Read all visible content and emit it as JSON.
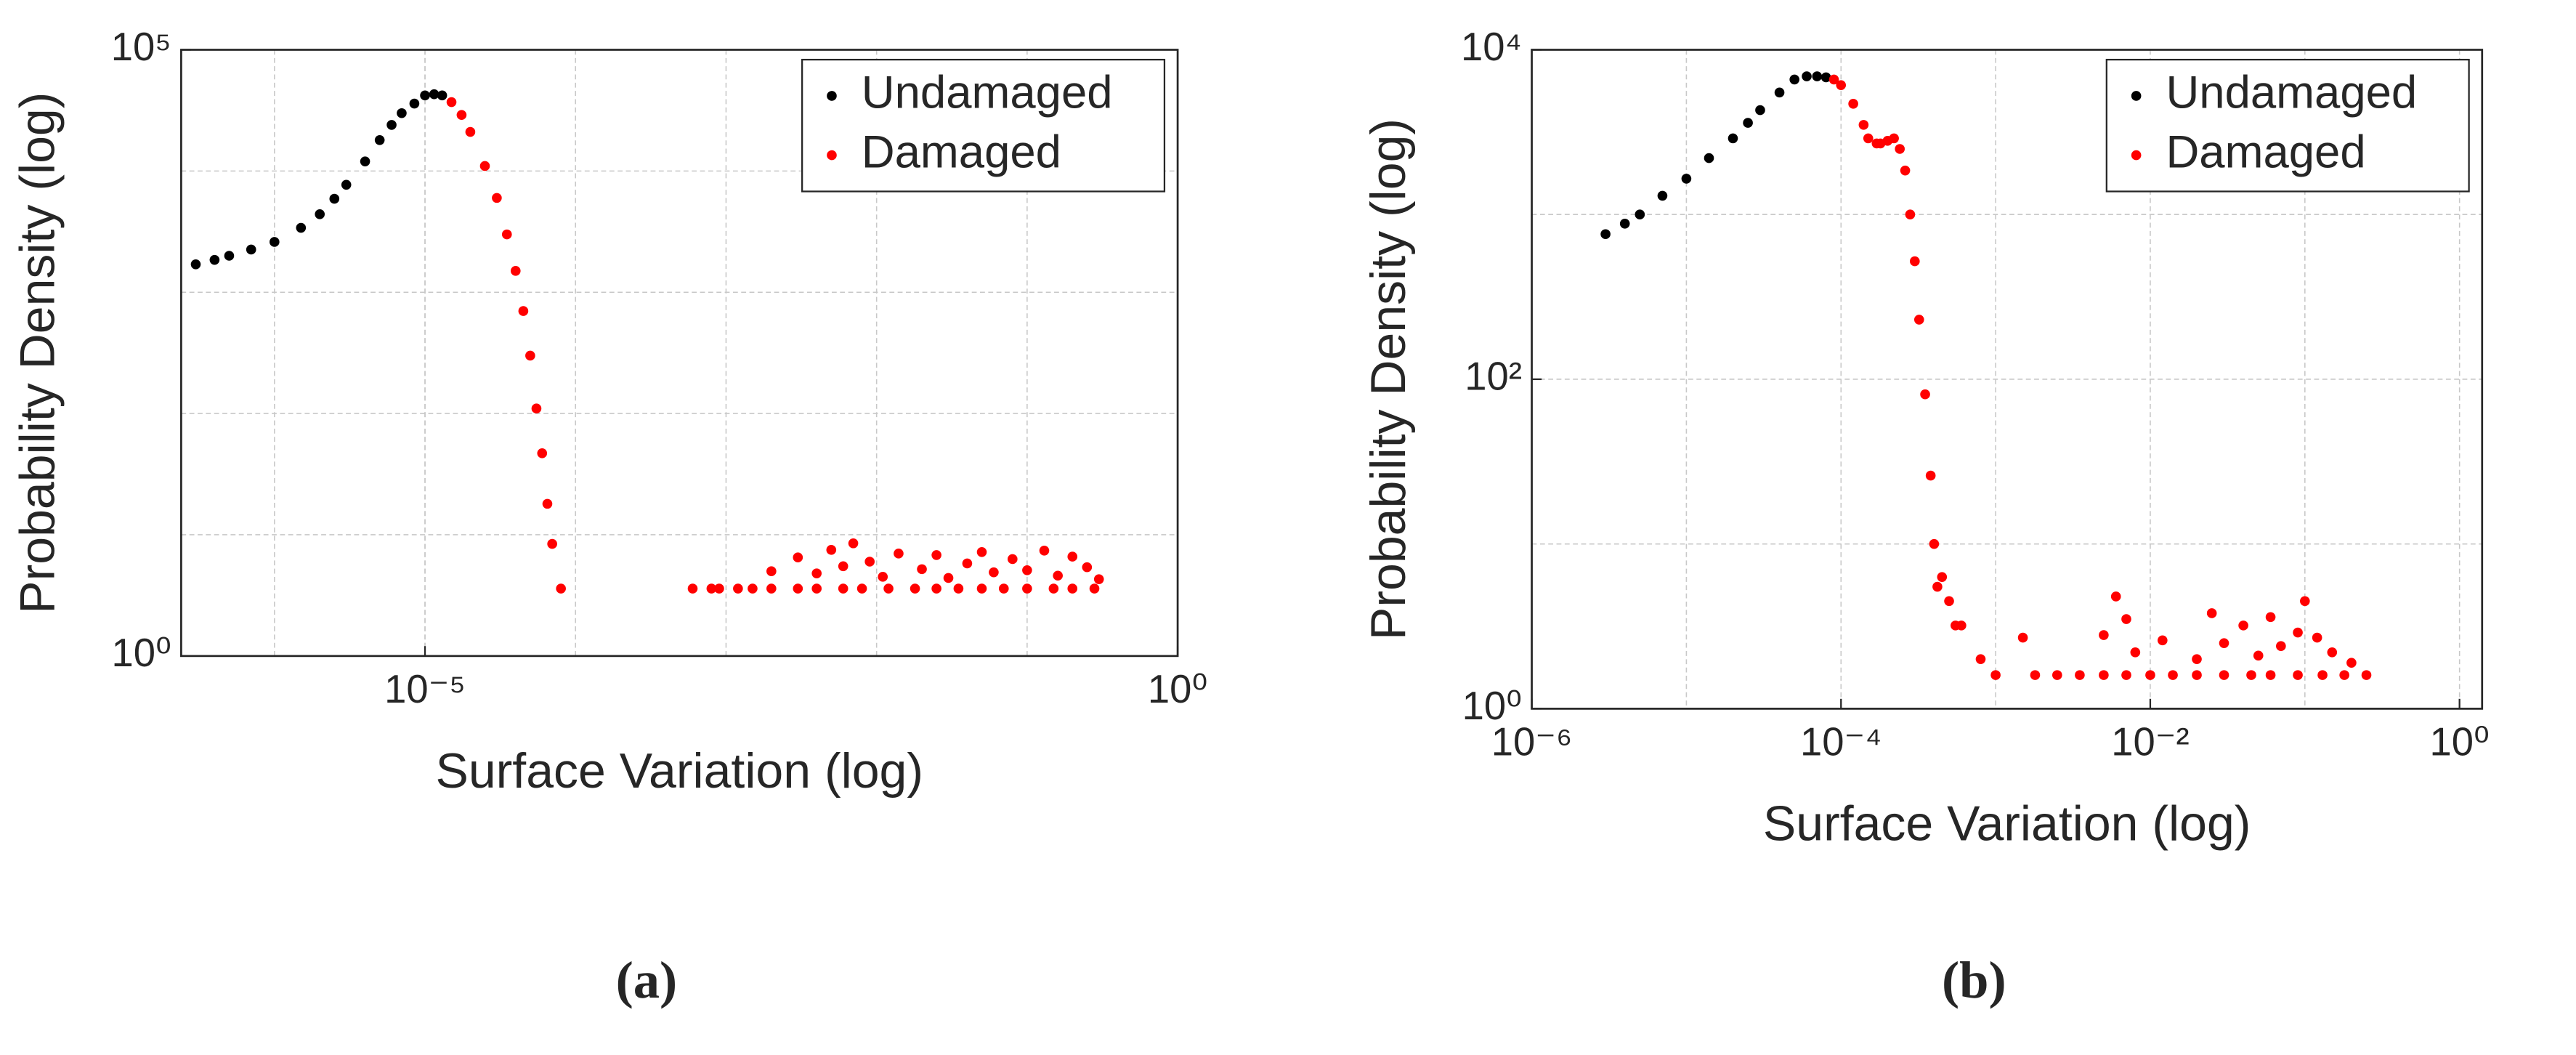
{
  "chart_data": [
    {
      "type": "scatter",
      "caption": "(a)",
      "xlabel": "Surface Variation (log)",
      "ylabel": "Probability Density (log)",
      "xscale": "log",
      "yscale": "log",
      "grid": true,
      "legend": "upper right",
      "xlim": [
        2.4e-07,
        1
      ],
      "ylim": [
        1,
        100000
      ],
      "xticks": [
        {
          "value": 1e-05,
          "label": "10⁻⁵"
        },
        {
          "value": 1,
          "label": "10⁰"
        }
      ],
      "yticks": [
        {
          "value": 1,
          "label": "10⁰"
        },
        {
          "value": 100000,
          "label": "10⁵"
        }
      ],
      "xgrid": [
        1e-06,
        1e-05,
        0.0001,
        0.001,
        0.01,
        0.1
      ],
      "ygrid": [
        10,
        100,
        1000,
        10000
      ],
      "series": [
        {
          "name": "Undamaged",
          "color": "#000000",
          "x": [
            3e-07,
            4e-07,
            5e-07,
            7e-07,
            1e-06,
            1.5e-06,
            2e-06,
            2.5e-06,
            3e-06,
            4e-06,
            5e-06,
            6e-06,
            7e-06,
            8.5e-06,
            1e-05,
            1.15e-05,
            1.3e-05
          ],
          "values": [
            1700,
            1850,
            2000,
            2250,
            2600,
            3400,
            4400,
            5900,
            7700,
            12000,
            18000,
            24000,
            30000,
            36000,
            42000,
            43000,
            42000
          ]
        },
        {
          "name": "Damaged",
          "color": "#ff0000",
          "x": [
            1.5e-05,
            1.75e-05,
            2e-05,
            2.5e-05,
            3e-05,
            3.5e-05,
            4e-05,
            4.5e-05,
            5e-05,
            5.5e-05,
            6e-05,
            6.5e-05,
            7e-05,
            8e-05,
            0.0006,
            0.0008,
            0.0009,
            0.0012,
            0.0015,
            0.002,
            0.003,
            0.004,
            0.006,
            0.008,
            0.012,
            0.018,
            0.025,
            0.035,
            0.05,
            0.07,
            0.1,
            0.15,
            0.2,
            0.28,
            0.002,
            0.003,
            0.004,
            0.005,
            0.006,
            0.007,
            0.009,
            0.011,
            0.014,
            0.02,
            0.025,
            0.03,
            0.04,
            0.05,
            0.06,
            0.08,
            0.1,
            0.13,
            0.16,
            0.2,
            0.25,
            0.3
          ],
          "values": [
            37000,
            29000,
            21000,
            11000,
            6000,
            3000,
            1500,
            700,
            300,
            110,
            47,
            18,
            8.4,
            3.6,
            3.6,
            3.6,
            3.6,
            3.6,
            3.6,
            3.6,
            3.6,
            3.6,
            3.6,
            3.6,
            3.6,
            3.6,
            3.6,
            3.6,
            3.6,
            3.6,
            3.6,
            3.6,
            3.6,
            3.6,
            5,
            6.5,
            4.8,
            7.5,
            5.5,
            8.5,
            6,
            4.5,
            7,
            5.2,
            6.8,
            4.4,
            5.8,
            7.2,
            4.9,
            6.3,
            5.1,
            7.4,
            4.6,
            6.6,
            5.4,
            4.3
          ]
        }
      ]
    },
    {
      "type": "scatter",
      "caption": "(b)",
      "xlabel": "Surface Variation (log)",
      "ylabel": "Probability Density (log)",
      "xscale": "log",
      "yscale": "log",
      "grid": true,
      "legend": "upper right",
      "xlim": [
        1e-06,
        1.4
      ],
      "ylim": [
        1,
        10000
      ],
      "xticks": [
        {
          "value": 1e-06,
          "label": "10⁻⁶"
        },
        {
          "value": 0.0001,
          "label": "10⁻⁴"
        },
        {
          "value": 0.01,
          "label": "10⁻²"
        },
        {
          "value": 1,
          "label": "10⁰"
        }
      ],
      "yticks": [
        {
          "value": 1,
          "label": "10⁰"
        },
        {
          "value": 100,
          "label": "10²"
        },
        {
          "value": 10000,
          "label": "10⁴"
        }
      ],
      "xgrid": [
        1e-05,
        0.001,
        0.1
      ],
      "ygrid": [
        10,
        1000
      ],
      "series": [
        {
          "name": "Undamaged",
          "color": "#000000",
          "x": [
            3e-06,
            4e-06,
            5e-06,
            7e-06,
            1e-05,
            1.4e-05,
            2e-05,
            2.5e-05,
            3e-05,
            4e-05,
            5e-05,
            6e-05,
            7e-05,
            8e-05
          ],
          "values": [
            760,
            880,
            1000,
            1300,
            1650,
            2200,
            2900,
            3600,
            4300,
            5500,
            6600,
            6900,
            6900,
            6800
          ]
        },
        {
          "name": "Damaged",
          "color": "#ff0000",
          "x": [
            9e-05,
            0.0001,
            0.00012,
            0.00014,
            0.00015,
            0.00017,
            0.00018,
            0.0002,
            0.00022,
            0.00024,
            0.00026,
            0.00028,
            0.0003,
            0.00032,
            0.00035,
            0.00038,
            0.0004,
            0.00042,
            0.00045,
            0.0005,
            0.00055,
            0.0006,
            0.0008,
            0.001,
            0.0015,
            0.0018,
            0.0025,
            0.0035,
            0.005,
            0.007,
            0.01,
            0.014,
            0.02,
            0.03,
            0.045,
            0.06,
            0.09,
            0.13,
            0.18,
            0.25,
            0.005,
            0.006,
            0.007,
            0.008,
            0.012,
            0.02,
            0.025,
            0.03,
            0.04,
            0.05,
            0.06,
            0.07,
            0.09,
            0.1,
            0.12,
            0.15,
            0.2
          ],
          "values": [
            6600,
            6100,
            4700,
            3500,
            2900,
            2700,
            2700,
            2800,
            2900,
            2500,
            1850,
            1000,
            520,
            230,
            81,
            26,
            10,
            5.5,
            6.3,
            4.5,
            3.2,
            3.2,
            2,
            1.6,
            2.7,
            1.6,
            1.6,
            1.6,
            1.6,
            1.6,
            1.6,
            1.6,
            1.6,
            1.6,
            1.6,
            1.6,
            1.6,
            1.6,
            1.6,
            1.6,
            2.8,
            4.8,
            3.5,
            2.2,
            2.6,
            2,
            3.8,
            2.5,
            3.2,
            2.1,
            3.6,
            2.4,
            2.9,
            4.5,
            2.7,
            2.2,
            1.9
          ]
        }
      ]
    }
  ]
}
